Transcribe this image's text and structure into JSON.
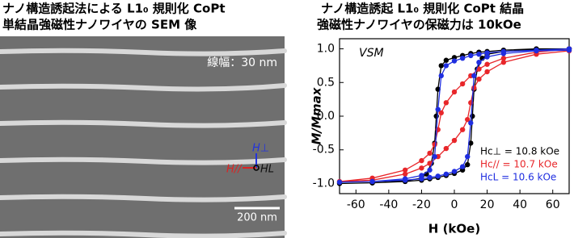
{
  "image_panel": {
    "title_lines": [
      "ナノ構造誘起法による L1₀ 規則化 CoPt",
      "単結晶強磁性ナノワイヤの SEM 像"
    ],
    "width_label": "線幅：30 nm",
    "scale_label": "200 nm",
    "field_labels": [
      "H⊥",
      "H//",
      "HL"
    ]
  },
  "chart_data": {
    "type": "scatter",
    "title_lines": [
      "ナノ構造誘起 L1₀ 規則化 CoPt 結晶",
      "強磁性ナノワイヤの保磁力は 10kOe"
    ],
    "annotation": "VSM",
    "xlabel": "H (kOe)",
    "ylabel": "M/Mmax",
    "xlim": [
      -70,
      70
    ],
    "xticks": [
      -60,
      -40,
      -20,
      0,
      20,
      40,
      60
    ],
    "ylim": [
      -1.15,
      1.15
    ],
    "yticks": [
      {
        "value": -1,
        "label": "-1.0"
      },
      {
        "value": -0.5,
        "label": "-0.5"
      },
      {
        "value": 0,
        "label": "0.0"
      },
      {
        "value": 0.5,
        "label": "0.5"
      },
      {
        "value": 1,
        "label": "1.0"
      }
    ],
    "legend": "lower right",
    "series": [
      {
        "name": "Hc⊥ = 10.8 kOe",
        "color": "#000000",
        "x": [
          70,
          50,
          30,
          20,
          15,
          10,
          5,
          0,
          -5,
          -8,
          -10,
          -11,
          -12,
          -14,
          -17,
          -20,
          -30,
          -50,
          -70,
          -50,
          -30,
          -20,
          -15,
          -10,
          -5,
          0,
          5,
          8,
          10,
          11,
          12,
          14,
          17,
          20,
          30,
          50,
          70
        ],
        "values": [
          1.0,
          1.0,
          0.98,
          0.96,
          0.95,
          0.93,
          0.9,
          0.87,
          0.83,
          0.75,
          0.4,
          0,
          -0.4,
          -0.7,
          -0.86,
          -0.92,
          -0.96,
          -0.99,
          -1.0,
          -0.99,
          -0.97,
          -0.95,
          -0.93,
          -0.91,
          -0.88,
          -0.85,
          -0.8,
          -0.72,
          -0.4,
          0,
          0.4,
          0.7,
          0.86,
          0.92,
          0.96,
          0.99,
          1.0
        ]
      },
      {
        "name": "Hc// = 10.7 kOe",
        "color": "#e8262a",
        "x": [
          70,
          50,
          30,
          20,
          15,
          10,
          5,
          0,
          -5,
          -8,
          -10,
          -12,
          -15,
          -20,
          -30,
          -50,
          -70,
          -50,
          -30,
          -20,
          -15,
          -10,
          -5,
          0,
          5,
          8,
          10,
          12,
          15,
          20,
          30,
          50,
          70
        ],
        "values": [
          1.0,
          0.95,
          0.86,
          0.77,
          0.7,
          0.6,
          0.48,
          0.36,
          0.2,
          0.05,
          -0.2,
          -0.42,
          -0.55,
          -0.66,
          -0.8,
          -0.92,
          -0.97,
          -0.95,
          -0.86,
          -0.77,
          -0.7,
          -0.6,
          -0.48,
          -0.36,
          -0.2,
          -0.05,
          0.2,
          0.42,
          0.55,
          0.66,
          0.8,
          0.92,
          0.97
        ]
      },
      {
        "name": "HcL = 10.6 kOe",
        "color": "#1f2ee0",
        "x": [
          70,
          50,
          30,
          20,
          15,
          10,
          5,
          0,
          -5,
          -8,
          -10,
          -12,
          -15,
          -20,
          -30,
          -50,
          -70,
          -50,
          -30,
          -20,
          -15,
          -10,
          -5,
          0,
          5,
          8,
          10,
          12,
          15,
          20,
          30,
          50,
          70
        ],
        "values": [
          1.0,
          0.98,
          0.96,
          0.94,
          0.92,
          0.9,
          0.86,
          0.82,
          0.75,
          0.6,
          0.1,
          -0.6,
          -0.8,
          -0.88,
          -0.93,
          -0.97,
          -0.98,
          -0.97,
          -0.95,
          -0.93,
          -0.91,
          -0.89,
          -0.86,
          -0.82,
          -0.75,
          -0.6,
          -0.1,
          0.6,
          0.8,
          0.88,
          0.93,
          0.97,
          0.98
        ]
      }
    ]
  }
}
